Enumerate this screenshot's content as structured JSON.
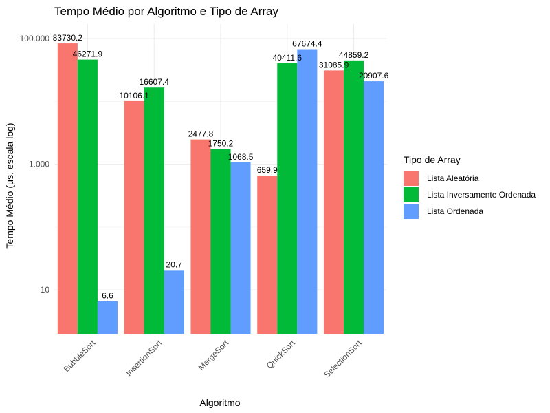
{
  "chart_data": {
    "type": "bar",
    "title": "Tempo Médio por Algoritmo e Tipo de Array",
    "xlabel": "Algoritmo",
    "ylabel": "Tempo Médio (μs, escala log)",
    "y_scale": "log10",
    "ylim": [
      2,
      170000
    ],
    "y_ticks": [
      10,
      1000,
      100000
    ],
    "y_tick_labels": [
      "10",
      "1.000",
      "100.000"
    ],
    "grid": true,
    "legend_position": "right",
    "legend_title": "Tipo de Array",
    "categories": [
      "BubbleSort",
      "InsertionSort",
      "MergeSort",
      "QuickSort",
      "SelectionSort"
    ],
    "series": [
      {
        "name": "Lista Aleatória",
        "color": "#F8766D",
        "values": [
          83730.2,
          10106.1,
          2477.8,
          659.9,
          31085.9
        ],
        "labels": [
          "83730.2",
          "10106.1",
          "2477.8",
          "659.9",
          "31085.9"
        ]
      },
      {
        "name": "Lista Inversamente Ordenada",
        "color": "#00BA38",
        "values": [
          46271.9,
          16607.4,
          1750.2,
          40411.6,
          44859.2
        ],
        "labels": [
          "46271.9",
          "16607.4",
          "1750.2",
          "40411.6",
          "44859.2"
        ]
      },
      {
        "name": "Lista Ordenada",
        "color": "#619CFF",
        "values": [
          6.6,
          20.7,
          1068.5,
          67674.4,
          20907.6
        ],
        "labels": [
          "6.6",
          "20.7",
          "1068.5",
          "67674.4",
          "20907.6"
        ]
      }
    ]
  }
}
